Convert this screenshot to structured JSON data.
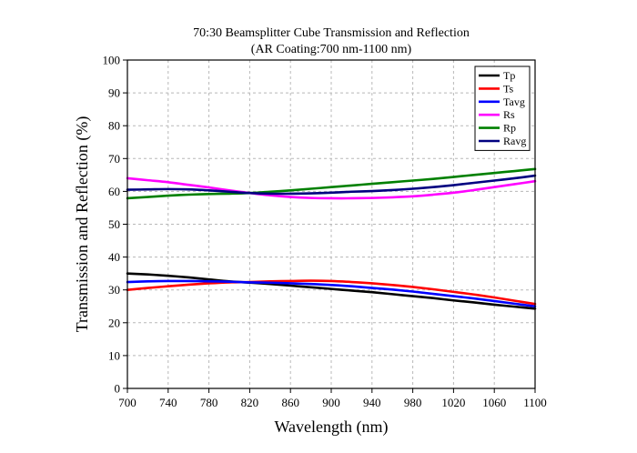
{
  "chart_data": {
    "type": "line",
    "title": "70:30 Beamsplitter Cube Transmission and Reflection",
    "subtitle": "(AR Coating:700 nm-1100 nm)",
    "xlabel": "Wavelength (nm)",
    "ylabel": "Transmission and Reflection (%)",
    "xlim": [
      700,
      1100
    ],
    "ylim": [
      0,
      100
    ],
    "x_ticks": [
      "700",
      "740",
      "780",
      "820",
      "860",
      "900",
      "940",
      "980",
      "1020",
      "1060",
      "1100"
    ],
    "y_ticks": [
      "0",
      "10",
      "20",
      "30",
      "40",
      "50",
      "60",
      "70",
      "80",
      "90",
      "100"
    ],
    "grid": true,
    "legend_position": "top-right",
    "x": [
      700,
      720,
      740,
      760,
      780,
      800,
      820,
      840,
      860,
      880,
      900,
      920,
      940,
      960,
      980,
      1000,
      1020,
      1040,
      1060,
      1080,
      1100
    ],
    "series": [
      {
        "name": "Tp",
        "color": "#000000",
        "values": [
          35.0,
          34.7,
          34.3,
          33.8,
          33.2,
          32.6,
          32.2,
          31.8,
          31.3,
          30.8,
          30.3,
          29.8,
          29.3,
          28.7,
          28.1,
          27.5,
          26.8,
          26.2,
          25.5,
          24.9,
          24.3
        ]
      },
      {
        "name": "Ts",
        "color": "#ff0000",
        "values": [
          30.0,
          30.6,
          31.1,
          31.6,
          32.0,
          32.3,
          32.4,
          32.6,
          32.7,
          32.8,
          32.7,
          32.4,
          32.0,
          31.5,
          30.9,
          30.2,
          29.4,
          28.6,
          27.7,
          26.7,
          25.7
        ]
      },
      {
        "name": "Tavg",
        "color": "#0000ff",
        "values": [
          32.4,
          32.6,
          32.7,
          32.7,
          32.6,
          32.5,
          32.3,
          32.2,
          32.0,
          31.8,
          31.5,
          31.1,
          30.6,
          30.1,
          29.5,
          28.8,
          28.1,
          27.4,
          26.6,
          25.8,
          25.0
        ]
      },
      {
        "name": "Rs",
        "color": "#ff00ff",
        "values": [
          64.0,
          63.4,
          62.8,
          62.0,
          61.2,
          60.3,
          59.5,
          58.8,
          58.3,
          58.0,
          57.9,
          57.9,
          58.0,
          58.2,
          58.5,
          59.0,
          59.6,
          60.4,
          61.3,
          62.2,
          63.1
        ]
      },
      {
        "name": "Rp",
        "color": "#008000",
        "values": [
          57.9,
          58.3,
          58.7,
          59.0,
          59.2,
          59.3,
          59.5,
          59.9,
          60.3,
          60.8,
          61.3,
          61.8,
          62.3,
          62.8,
          63.3,
          63.8,
          64.4,
          65.0,
          65.6,
          66.2,
          66.8
        ]
      },
      {
        "name": "Ravg",
        "color": "#000080",
        "values": [
          60.5,
          60.6,
          60.7,
          60.6,
          60.3,
          59.9,
          59.5,
          59.3,
          59.3,
          59.4,
          59.6,
          59.9,
          60.1,
          60.4,
          60.8,
          61.3,
          61.9,
          62.6,
          63.3,
          64.0,
          64.8
        ]
      }
    ]
  }
}
